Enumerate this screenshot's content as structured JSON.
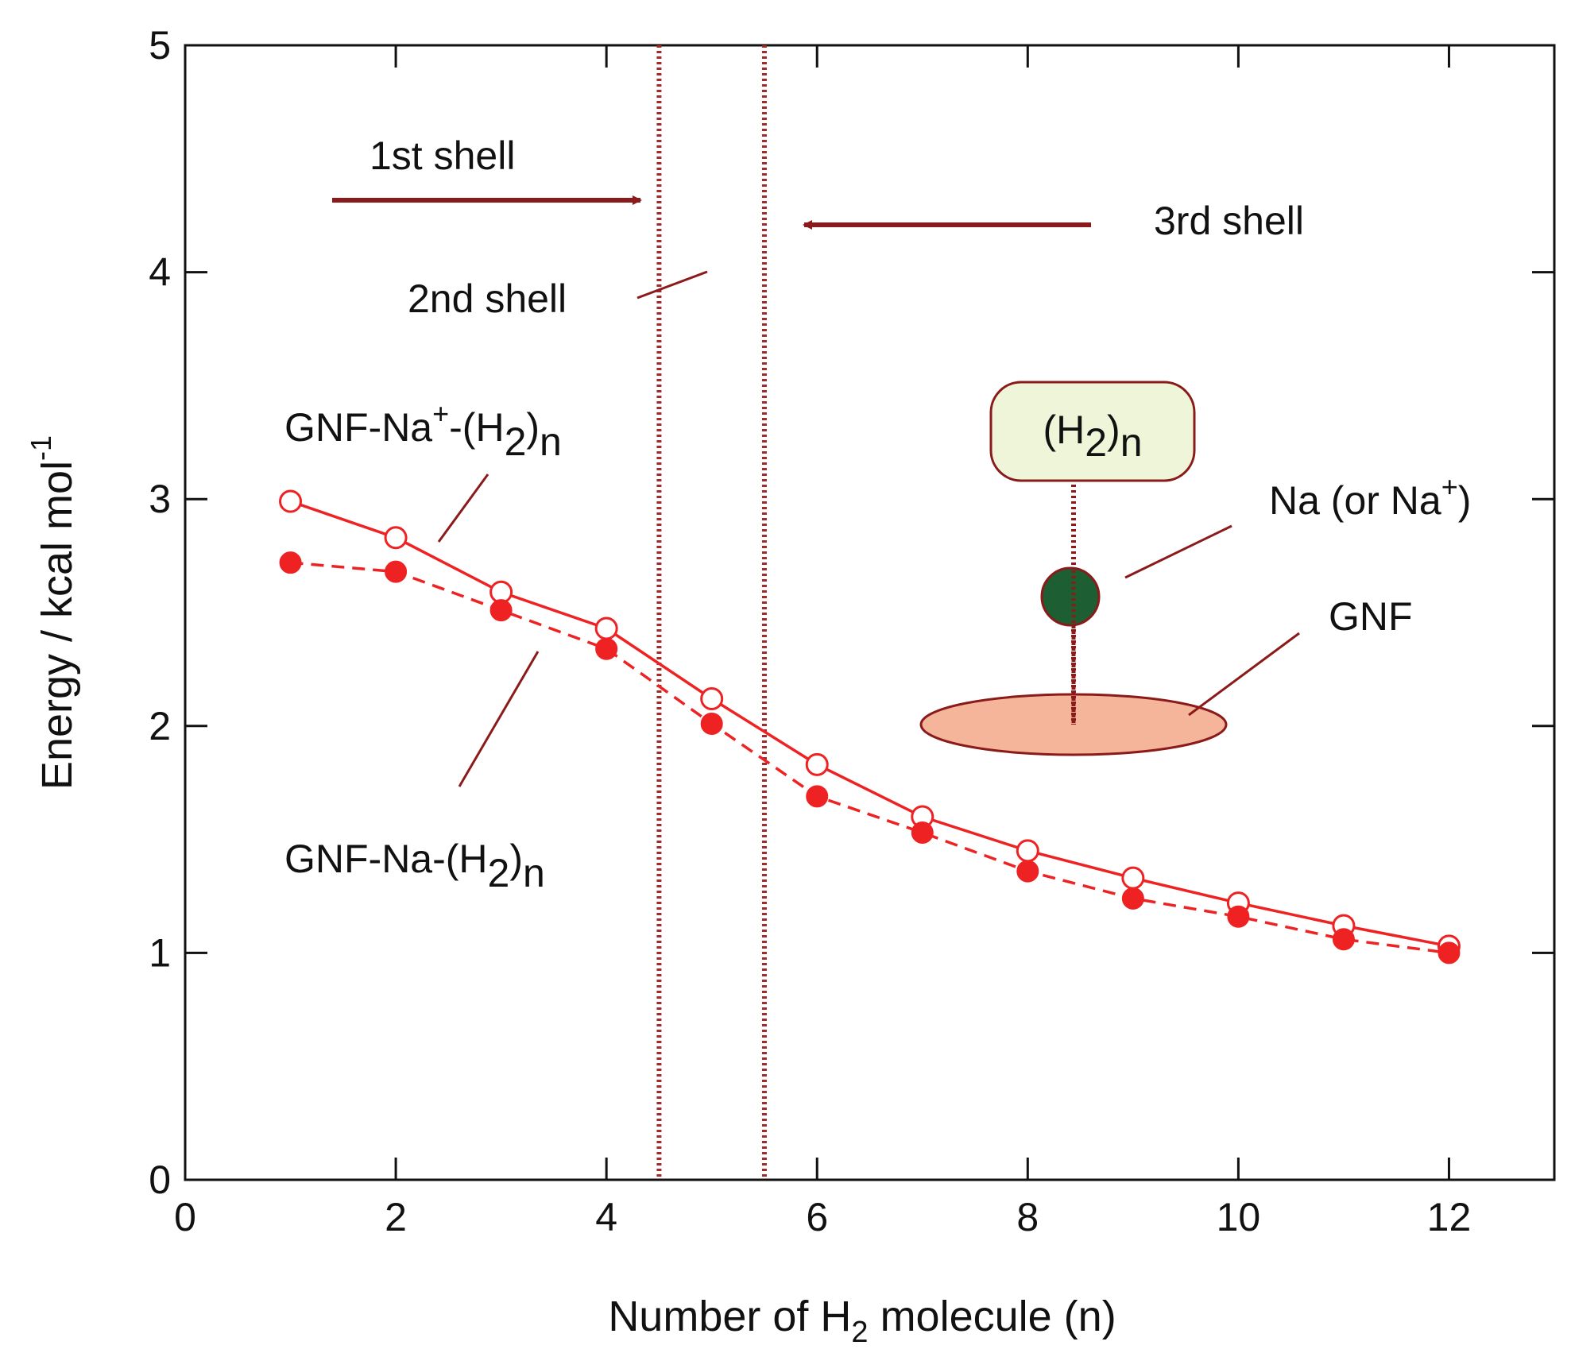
{
  "chart_data": {
    "type": "line",
    "xlabel": "Number of H",
    "xlabel_sub": "2",
    "xlabel_tail": " molecule (n)",
    "ylabel": "Energy / kcal mol",
    "ylabel_sup": "-1",
    "xlim": [
      0,
      13
    ],
    "ylim": [
      0,
      5
    ],
    "x_ticks": [
      0,
      2,
      4,
      6,
      8,
      10,
      12
    ],
    "y_ticks": [
      0,
      1,
      2,
      3,
      4,
      5
    ],
    "grid": false,
    "x": [
      1,
      2,
      3,
      4,
      5,
      6,
      7,
      8,
      9,
      10,
      11,
      12
    ],
    "series": [
      {
        "id": "cation",
        "label_main": "GNF-Na",
        "label_sup": "+",
        "label_mid": "-(H",
        "label_sub": "2",
        "label_tail": ")",
        "label_sub2": "n",
        "marker": "open-circle",
        "line": "solid",
        "values": [
          2.99,
          2.83,
          2.59,
          2.43,
          2.12,
          1.83,
          1.6,
          1.45,
          1.33,
          1.22,
          1.12,
          1.03
        ]
      },
      {
        "id": "neutral",
        "label_main": "GNF-Na-(H",
        "label_sub": "2",
        "label_tail": ")",
        "label_sub2": "n",
        "marker": "filled-circle",
        "line": "dashed",
        "values": [
          2.72,
          2.68,
          2.51,
          2.34,
          2.01,
          1.69,
          1.53,
          1.36,
          1.24,
          1.16,
          1.06,
          1.0
        ]
      }
    ],
    "vlines": [
      4.5,
      5.5
    ],
    "annotations": {
      "first_shell": "1st shell",
      "second_shell": "2nd shell",
      "third_shell": "3rd shell",
      "inset_h2": "(H",
      "inset_h2_sub": "2",
      "inset_h2_tail": ")",
      "inset_h2_sub2": "n",
      "inset_na": "Na (or Na",
      "inset_na_sup": "+",
      "inset_na_tail": ")",
      "inset_gnf": "GNF"
    },
    "colors": {
      "series": "#ee2222",
      "annotation": "#8b1a1a",
      "vline": "#a32a2a",
      "inset_box_fill": "#eef5d9",
      "inset_box_stroke": "#8b1a1a",
      "sodium_fill": "#1d5e33",
      "gnf_fill": "#f4b59a"
    }
  }
}
